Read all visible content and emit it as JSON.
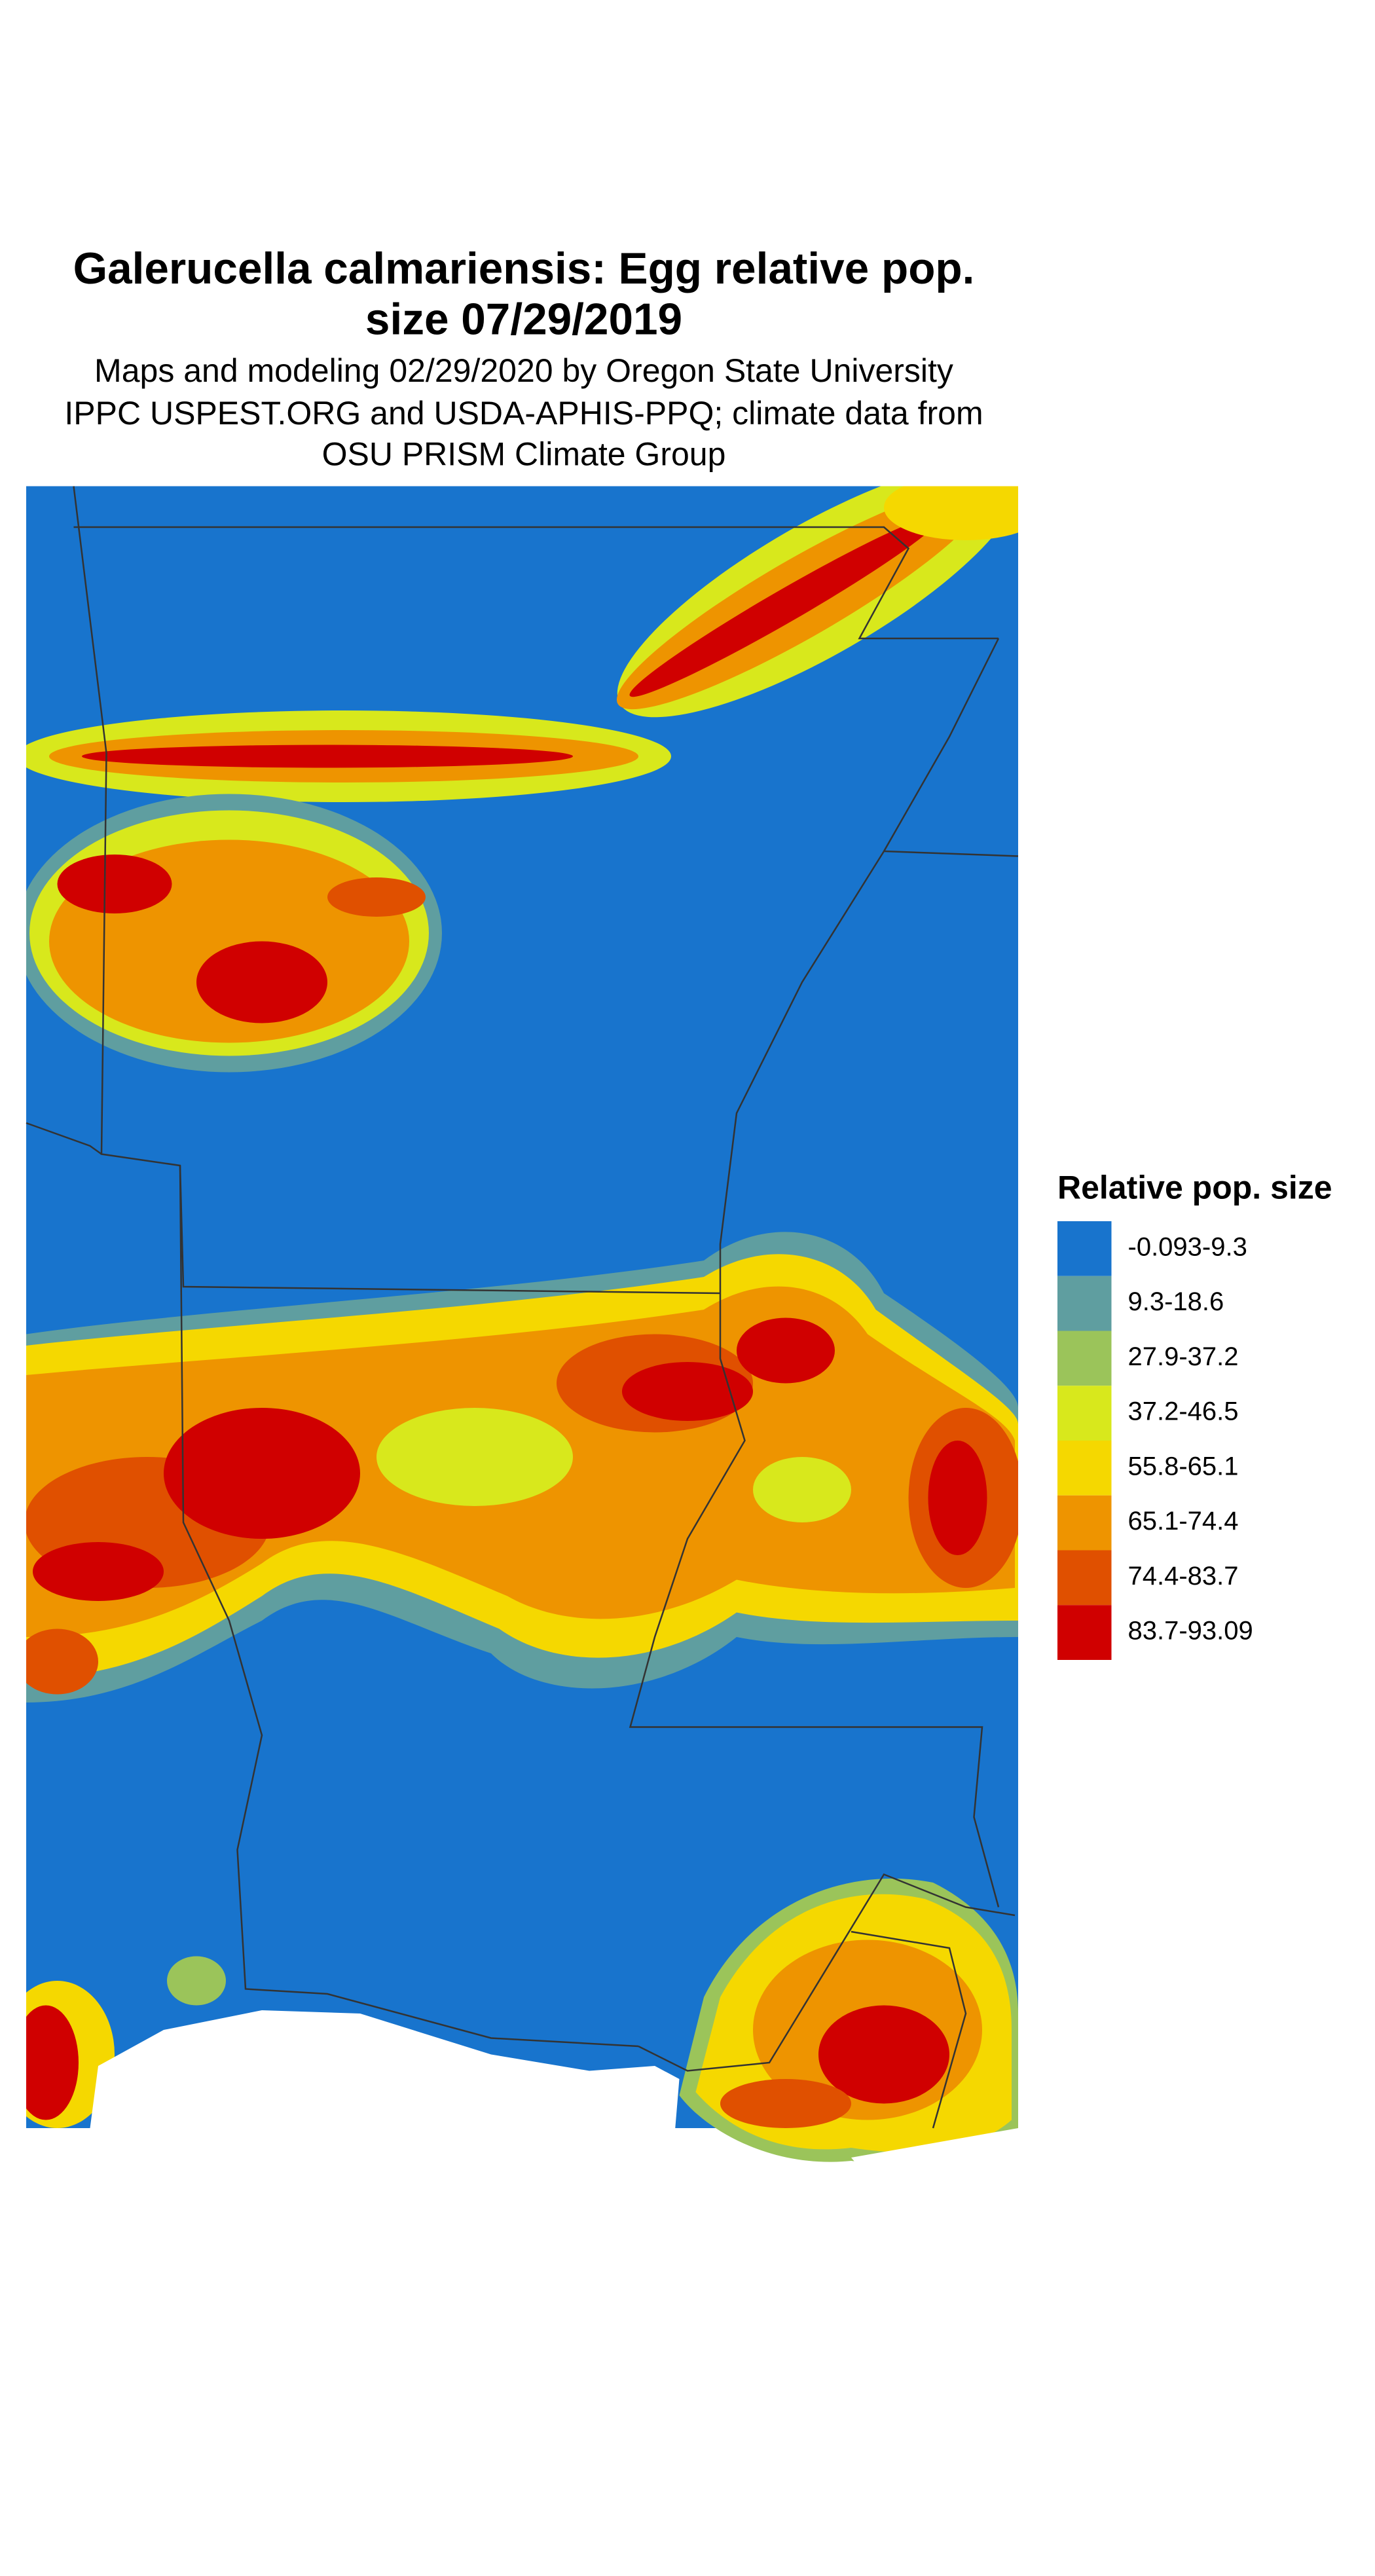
{
  "title_lines": [
    "Galerucella calmariensis: Egg relative pop.",
    "size 07/29/2019"
  ],
  "subtitle_lines": [
    "Maps and modeling 02/29/2020 by Oregon State University",
    "IPPC USPEST.ORG and USDA-APHIS-PPQ; climate data from",
    "OSU PRISM Climate Group"
  ],
  "legend": {
    "title": "Relative pop. size",
    "items": [
      {
        "label": "-0.093-9.3",
        "color": "#1874cd"
      },
      {
        "label": "9.3-18.6",
        "color": "#5f9ea0"
      },
      {
        "label": "27.9-37.2",
        "color": "#9bc45a"
      },
      {
        "label": "37.2-46.5",
        "color": "#d8e81c"
      },
      {
        "label": "55.8-65.1",
        "color": "#f5d800"
      },
      {
        "label": "65.1-74.4",
        "color": "#ee9400"
      },
      {
        "label": "74.4-83.7",
        "color": "#e05000"
      },
      {
        "label": "83.7-93.09",
        "color": "#d00000"
      }
    ]
  }
}
